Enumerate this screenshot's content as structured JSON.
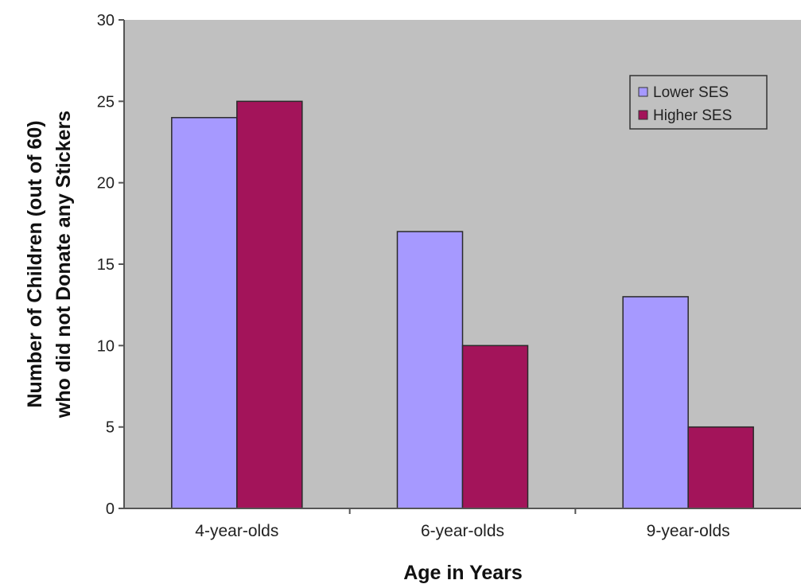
{
  "chart_data": {
    "type": "bar",
    "title": "",
    "xlabel": "Age in Years",
    "ylabel_lines": [
      "Number of Children (out of 60)",
      "who did not Donate any Stickers"
    ],
    "categories": [
      "4-year-olds",
      "6-year-olds",
      "9-year-olds"
    ],
    "series": [
      {
        "name": "Lower SES",
        "values": [
          24,
          17,
          13
        ],
        "color": "#a699ff"
      },
      {
        "name": "Higher SES",
        "values": [
          25,
          10,
          5
        ],
        "color": "#a3145a"
      }
    ],
    "ylim": [
      0,
      30
    ],
    "yticks": [
      0,
      5,
      10,
      15,
      20,
      25,
      30
    ],
    "grid": false,
    "legend_position": "top-right",
    "plot_background": "#c0c0c0"
  }
}
